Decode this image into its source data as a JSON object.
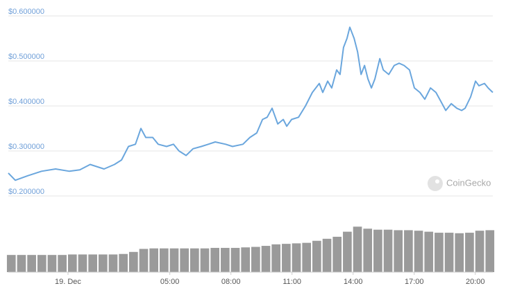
{
  "chart_data": [
    {
      "type": "line",
      "color": "#6aa6dd",
      "grid": true,
      "watermark": "CoinGecko",
      "xlim": [
        -2.93,
        20.86
      ],
      "xticks": [
        {
          "value": 0,
          "label": "19. Dec"
        },
        {
          "value": 5,
          "label": "05:00"
        },
        {
          "value": 8,
          "label": "08:00"
        },
        {
          "value": 11,
          "label": "11:00"
        },
        {
          "value": 14,
          "label": "14:00"
        },
        {
          "value": 17,
          "label": "17:00"
        },
        {
          "value": 20,
          "label": "20:00"
        }
      ],
      "ylim": [
        0.2,
        0.6
      ],
      "yticks": [
        {
          "value": 0.6,
          "label": "$0.600000"
        },
        {
          "value": 0.5,
          "label": "$0.500000"
        },
        {
          "value": 0.4,
          "label": "$0.400000"
        },
        {
          "value": 0.3,
          "label": "$0.300000"
        },
        {
          "value": 0.2,
          "label": "$0.200000"
        }
      ],
      "x": [
        -2.93,
        -2.59,
        -1.98,
        -1.3,
        -0.61,
        0.07,
        0.58,
        1.09,
        1.77,
        2.28,
        2.63,
        2.97,
        3.31,
        3.58,
        3.82,
        4.16,
        4.43,
        4.84,
        5.18,
        5.45,
        5.8,
        6.14,
        6.55,
        6.89,
        7.23,
        7.74,
        8.08,
        8.59,
        8.93,
        9.27,
        9.55,
        9.78,
        10.02,
        10.3,
        10.57,
        10.74,
        10.98,
        11.32,
        11.66,
        12.0,
        12.34,
        12.51,
        12.75,
        12.95,
        13.19,
        13.36,
        13.53,
        13.7,
        13.84,
        14.05,
        14.22,
        14.39,
        14.56,
        14.73,
        14.9,
        15.07,
        15.31,
        15.48,
        15.75,
        16.02,
        16.26,
        16.5,
        16.77,
        17.01,
        17.28,
        17.52,
        17.8,
        18.07,
        18.31,
        18.55,
        18.82,
        19.09,
        19.33,
        19.5,
        19.77,
        20.01,
        20.18,
        20.45,
        20.63,
        20.86
      ],
      "values": [
        0.251,
        0.235,
        0.245,
        0.255,
        0.26,
        0.255,
        0.258,
        0.27,
        0.26,
        0.27,
        0.28,
        0.31,
        0.315,
        0.35,
        0.33,
        0.33,
        0.315,
        0.31,
        0.315,
        0.3,
        0.29,
        0.305,
        0.31,
        0.315,
        0.32,
        0.315,
        0.31,
        0.315,
        0.33,
        0.34,
        0.37,
        0.375,
        0.395,
        0.36,
        0.37,
        0.355,
        0.37,
        0.375,
        0.4,
        0.43,
        0.45,
        0.43,
        0.455,
        0.44,
        0.48,
        0.47,
        0.53,
        0.55,
        0.575,
        0.55,
        0.52,
        0.47,
        0.49,
        0.46,
        0.44,
        0.46,
        0.505,
        0.48,
        0.47,
        0.49,
        0.495,
        0.49,
        0.48,
        0.44,
        0.43,
        0.415,
        0.44,
        0.43,
        0.41,
        0.39,
        0.405,
        0.395,
        0.39,
        0.395,
        0.42,
        0.455,
        0.445,
        0.45,
        0.44,
        0.43
      ]
    },
    {
      "type": "bar",
      "color": "#9a9a9a",
      "ylim": [
        0,
        100
      ],
      "x": [
        -3,
        -2.5,
        -2,
        -1.5,
        -1,
        -0.5,
        0,
        0.5,
        1,
        1.5,
        2,
        2.5,
        3,
        3.5,
        4,
        4.5,
        5,
        5.5,
        6,
        6.5,
        7,
        7.5,
        8,
        8.5,
        9,
        9.5,
        10,
        10.5,
        11,
        11.5,
        12,
        12.5,
        13,
        13.5,
        14,
        14.5,
        15,
        15.5,
        16,
        16.5,
        17,
        17.5,
        18,
        18.5,
        19,
        19.5,
        20,
        20.5
      ],
      "values": [
        34,
        34,
        34,
        34,
        34,
        34,
        35,
        35,
        35,
        35,
        35,
        36,
        40,
        46,
        47,
        47,
        47,
        47,
        47,
        47,
        48,
        48,
        48,
        49,
        50,
        52,
        55,
        56,
        57,
        58,
        62,
        66,
        70,
        80,
        90,
        86,
        84,
        84,
        83,
        83,
        82,
        80,
        78,
        78,
        77,
        78,
        82,
        83
      ]
    }
  ]
}
